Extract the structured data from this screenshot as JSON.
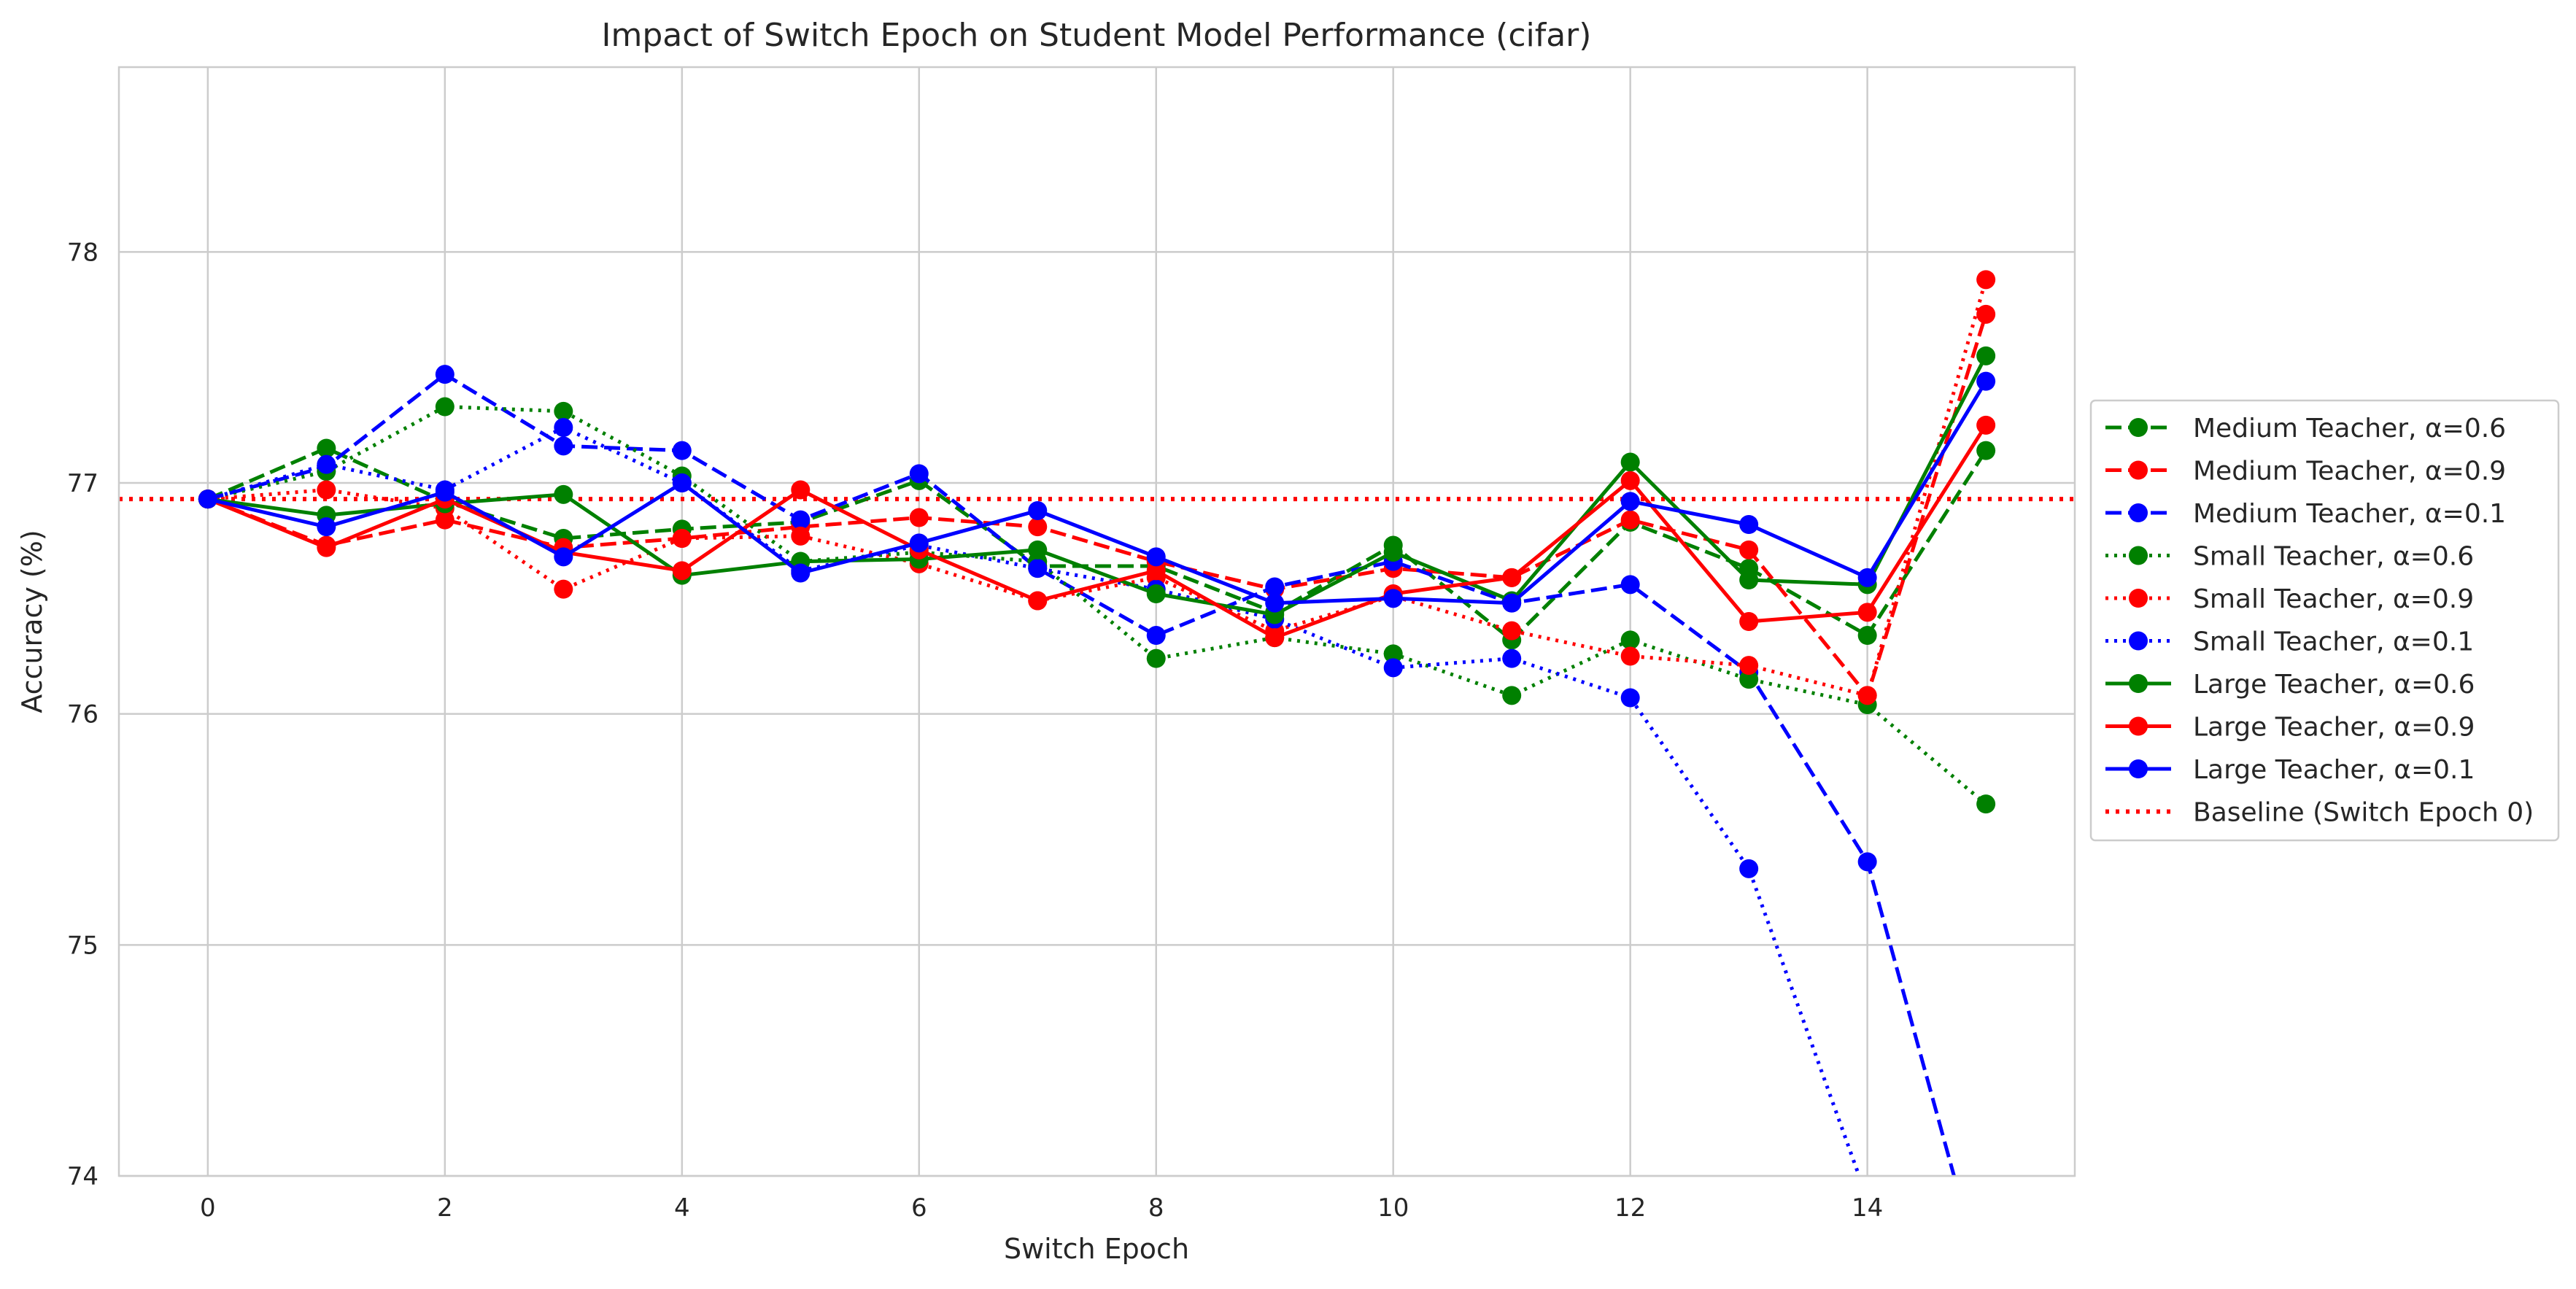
{
  "chart_data": {
    "type": "line",
    "title": "Impact of Switch Epoch on Student Model Performance (cifar)",
    "xlabel": "Switch Epoch",
    "ylabel": "Accuracy (%)",
    "xlim": [
      -0.75,
      15.75
    ],
    "ylim": [
      74,
      78.8
    ],
    "x_ticks": [
      0,
      2,
      4,
      6,
      8,
      10,
      12,
      14
    ],
    "y_ticks": [
      74,
      75,
      76,
      77,
      78
    ],
    "grid": true,
    "legend_position": "right, outside plot",
    "x": [
      0,
      1,
      2,
      3,
      4,
      5,
      6,
      7,
      8,
      9,
      10,
      11,
      12,
      13,
      14,
      15
    ],
    "series": [
      {
        "name": "Medium Teacher, α=0.6",
        "color": "#008000",
        "line_style": "dashed",
        "marker": "circle",
        "values": [
          76.93,
          77.15,
          76.92,
          76.76,
          76.8,
          76.83,
          77.01,
          76.64,
          76.64,
          76.44,
          76.73,
          76.32,
          76.83,
          76.63,
          76.34,
          77.14
        ]
      },
      {
        "name": "Medium Teacher, α=0.9",
        "color": "#ff0000",
        "line_style": "dashed",
        "marker": "circle",
        "values": [
          76.93,
          76.73,
          76.84,
          76.72,
          76.76,
          76.81,
          76.85,
          76.81,
          76.66,
          76.54,
          76.63,
          76.59,
          76.84,
          76.71,
          76.08,
          77.73
        ]
      },
      {
        "name": "Medium Teacher, α=0.1",
        "color": "#0000ff",
        "line_style": "dashed",
        "marker": "circle",
        "values": [
          76.93,
          77.07,
          77.47,
          77.16,
          77.14,
          76.84,
          77.04,
          76.63,
          76.34,
          76.55,
          76.66,
          76.48,
          76.56,
          76.18,
          75.36,
          73.5
        ]
      },
      {
        "name": "Small Teacher, α=0.6",
        "color": "#008000",
        "line_style": "dotted",
        "marker": "circle",
        "values": [
          76.93,
          77.05,
          77.33,
          77.31,
          77.03,
          76.66,
          76.7,
          76.66,
          76.24,
          76.33,
          76.26,
          76.08,
          76.32,
          76.15,
          76.04,
          75.61
        ]
      },
      {
        "name": "Small Teacher, α=0.9",
        "color": "#ff0000",
        "line_style": "dotted",
        "marker": "circle",
        "values": [
          76.93,
          76.97,
          76.89,
          76.54,
          76.76,
          76.77,
          76.65,
          76.49,
          76.59,
          76.36,
          76.51,
          76.36,
          76.25,
          76.21,
          76.08,
          77.88
        ]
      },
      {
        "name": "Small Teacher, α=0.1",
        "color": "#0000ff",
        "line_style": "dotted",
        "marker": "circle",
        "values": [
          76.93,
          77.08,
          76.97,
          77.24,
          77.0,
          76.62,
          76.73,
          76.63,
          76.54,
          76.41,
          76.2,
          76.24,
          76.07,
          75.33,
          73.9,
          null
        ]
      },
      {
        "name": "Large Teacher, α=0.6",
        "color": "#008000",
        "line_style": "solid",
        "marker": "circle",
        "values": [
          76.93,
          76.86,
          76.91,
          76.95,
          76.6,
          76.66,
          76.67,
          76.71,
          76.52,
          76.43,
          76.7,
          76.49,
          77.09,
          76.58,
          76.56,
          77.55
        ]
      },
      {
        "name": "Large Teacher, α=0.9",
        "color": "#ff0000",
        "line_style": "solid",
        "marker": "circle",
        "values": [
          76.93,
          76.72,
          76.93,
          76.7,
          76.62,
          76.97,
          76.71,
          76.49,
          76.62,
          76.33,
          76.52,
          76.59,
          77.01,
          76.4,
          76.44,
          77.25
        ]
      },
      {
        "name": "Large Teacher, α=0.1",
        "color": "#0000ff",
        "line_style": "solid",
        "marker": "circle",
        "values": [
          76.93,
          76.81,
          76.96,
          76.68,
          77.0,
          76.61,
          76.74,
          76.88,
          76.68,
          76.48,
          76.5,
          76.48,
          76.92,
          76.82,
          76.59,
          77.44
        ]
      }
    ],
    "baseline": {
      "name": "Baseline (Switch Epoch 0)",
      "color": "#ff0000",
      "line_style": "dotted",
      "value": 76.93
    }
  }
}
